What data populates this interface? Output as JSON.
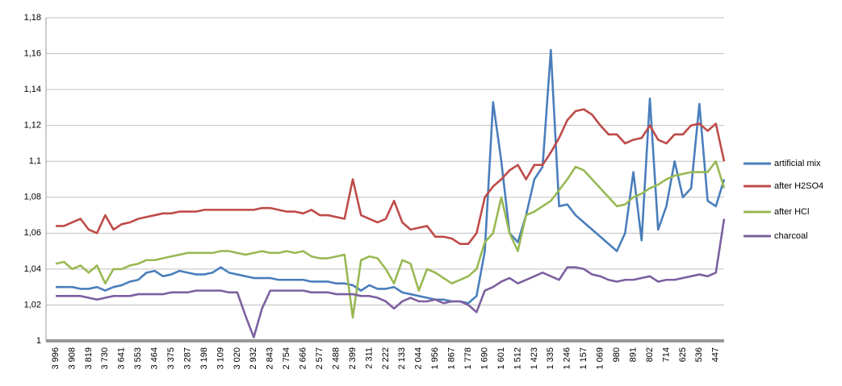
{
  "chart_data": {
    "type": "line",
    "categories": [
      "3 996",
      null,
      "3 908",
      null,
      "3 819",
      null,
      "3 730",
      null,
      "3 641",
      null,
      "3 553",
      null,
      "3 464",
      null,
      "3 375",
      null,
      "3 287",
      null,
      "3 198",
      null,
      "3 109",
      null,
      "3 020",
      null,
      "2 932",
      null,
      "2 843",
      null,
      "2 754",
      null,
      "2 666",
      null,
      "2 577",
      null,
      "2 488",
      null,
      "2 399",
      null,
      "2 311",
      null,
      "2 222",
      null,
      "2 133",
      null,
      "2 044",
      null,
      "1 956",
      null,
      "1 867",
      null,
      "1 778",
      null,
      "1 690",
      null,
      "1 601",
      null,
      "1 512",
      null,
      "1 423",
      null,
      "1 335",
      null,
      "1 246",
      null,
      "1 157",
      null,
      "1 069",
      null,
      "980",
      null,
      "891",
      null,
      "802",
      null,
      "714",
      null,
      "625",
      null,
      "536",
      null,
      "447",
      null
    ],
    "series": [
      {
        "name": "artificial mix",
        "color": "#4a7ebb",
        "values": [
          1.03,
          1.03,
          1.03,
          1.029,
          1.029,
          1.03,
          1.028,
          1.03,
          1.031,
          1.033,
          1.034,
          1.038,
          1.039,
          1.036,
          1.037,
          1.039,
          1.038,
          1.037,
          1.037,
          1.038,
          1.041,
          1.038,
          1.037,
          1.036,
          1.035,
          1.035,
          1.035,
          1.034,
          1.034,
          1.034,
          1.034,
          1.033,
          1.033,
          1.033,
          1.032,
          1.032,
          1.031,
          1.028,
          1.031,
          1.029,
          1.029,
          1.03,
          1.027,
          1.026,
          1.025,
          1.024,
          1.023,
          1.023,
          1.022,
          1.022,
          1.021,
          1.025,
          1.05,
          1.133,
          1.1,
          1.06,
          1.055,
          1.07,
          1.09,
          1.097,
          1.162,
          1.075,
          1.076,
          1.07,
          1.066,
          1.062,
          1.058,
          1.054,
          1.05,
          1.06,
          1.094,
          1.056,
          1.135,
          1.062,
          1.075,
          1.1,
          1.08,
          1.085,
          1.132,
          1.078,
          1.075,
          1.09
        ]
      },
      {
        "name": "after H2SO4",
        "color": "#be4b48",
        "values": [
          1.064,
          1.064,
          1.066,
          1.068,
          1.062,
          1.06,
          1.07,
          1.062,
          1.065,
          1.066,
          1.068,
          1.069,
          1.07,
          1.071,
          1.071,
          1.072,
          1.072,
          1.072,
          1.073,
          1.073,
          1.073,
          1.073,
          1.073,
          1.073,
          1.073,
          1.074,
          1.074,
          1.073,
          1.072,
          1.072,
          1.071,
          1.073,
          1.07,
          1.07,
          1.069,
          1.068,
          1.09,
          1.07,
          1.068,
          1.066,
          1.068,
          1.078,
          1.066,
          1.062,
          1.063,
          1.064,
          1.058,
          1.058,
          1.057,
          1.054,
          1.054,
          1.06,
          1.08,
          1.086,
          1.09,
          1.095,
          1.098,
          1.09,
          1.098,
          1.098,
          1.105,
          1.113,
          1.123,
          1.128,
          1.129,
          1.126,
          1.12,
          1.115,
          1.115,
          1.11,
          1.112,
          1.113,
          1.12,
          1.112,
          1.11,
          1.115,
          1.115,
          1.12,
          1.121,
          1.117,
          1.121,
          1.1
        ]
      },
      {
        "name": "after HCl",
        "color": "#98b954",
        "values": [
          1.043,
          1.044,
          1.04,
          1.042,
          1.038,
          1.042,
          1.032,
          1.04,
          1.04,
          1.042,
          1.043,
          1.045,
          1.045,
          1.046,
          1.047,
          1.048,
          1.049,
          1.049,
          1.049,
          1.049,
          1.05,
          1.05,
          1.049,
          1.048,
          1.049,
          1.05,
          1.049,
          1.049,
          1.05,
          1.049,
          1.05,
          1.047,
          1.046,
          1.046,
          1.047,
          1.048,
          1.013,
          1.045,
          1.047,
          1.046,
          1.04,
          1.032,
          1.045,
          1.043,
          1.028,
          1.04,
          1.038,
          1.035,
          1.032,
          1.034,
          1.036,
          1.04,
          1.055,
          1.06,
          1.08,
          1.06,
          1.05,
          1.07,
          1.072,
          1.075,
          1.078,
          1.084,
          1.09,
          1.097,
          1.095,
          1.09,
          1.085,
          1.08,
          1.075,
          1.076,
          1.08,
          1.082,
          1.085,
          1.087,
          1.09,
          1.092,
          1.093,
          1.094,
          1.094,
          1.094,
          1.1,
          1.085
        ]
      },
      {
        "name": "charcoal",
        "color": "#7d60a0",
        "values": [
          1.025,
          1.025,
          1.025,
          1.025,
          1.024,
          1.023,
          1.024,
          1.025,
          1.025,
          1.025,
          1.026,
          1.026,
          1.026,
          1.026,
          1.027,
          1.027,
          1.027,
          1.028,
          1.028,
          1.028,
          1.028,
          1.027,
          1.027,
          1.014,
          1.002,
          1.018,
          1.028,
          1.028,
          1.028,
          1.028,
          1.028,
          1.027,
          1.027,
          1.027,
          1.026,
          1.026,
          1.026,
          1.025,
          1.025,
          1.024,
          1.022,
          1.018,
          1.022,
          1.024,
          1.022,
          1.022,
          1.023,
          1.021,
          1.022,
          1.022,
          1.02,
          1.016,
          1.028,
          1.03,
          1.033,
          1.035,
          1.032,
          1.034,
          1.036,
          1.038,
          1.036,
          1.034,
          1.041,
          1.041,
          1.04,
          1.037,
          1.036,
          1.034,
          1.033,
          1.034,
          1.034,
          1.035,
          1.036,
          1.033,
          1.034,
          1.034,
          1.035,
          1.036,
          1.037,
          1.036,
          1.038,
          1.068
        ]
      }
    ],
    "ylim": [
      1,
      1.18
    ],
    "yticks": [
      1,
      {
        "value": 1.02,
        "label": "1,02"
      },
      {
        "value": 1.04,
        "label": "1,04"
      },
      {
        "value": 1.06,
        "label": "1,06"
      },
      {
        "value": 1.08,
        "label": "1,08"
      },
      {
        "value": 1.1,
        "label": "1,1"
      },
      {
        "value": 1.12,
        "label": "1,12"
      },
      {
        "value": 1.14,
        "label": "1,14"
      },
      {
        "value": 1.16,
        "label": "1,16"
      },
      {
        "value": 1.18,
        "label": "1,18"
      }
    ],
    "grid": true,
    "legend": "right"
  }
}
